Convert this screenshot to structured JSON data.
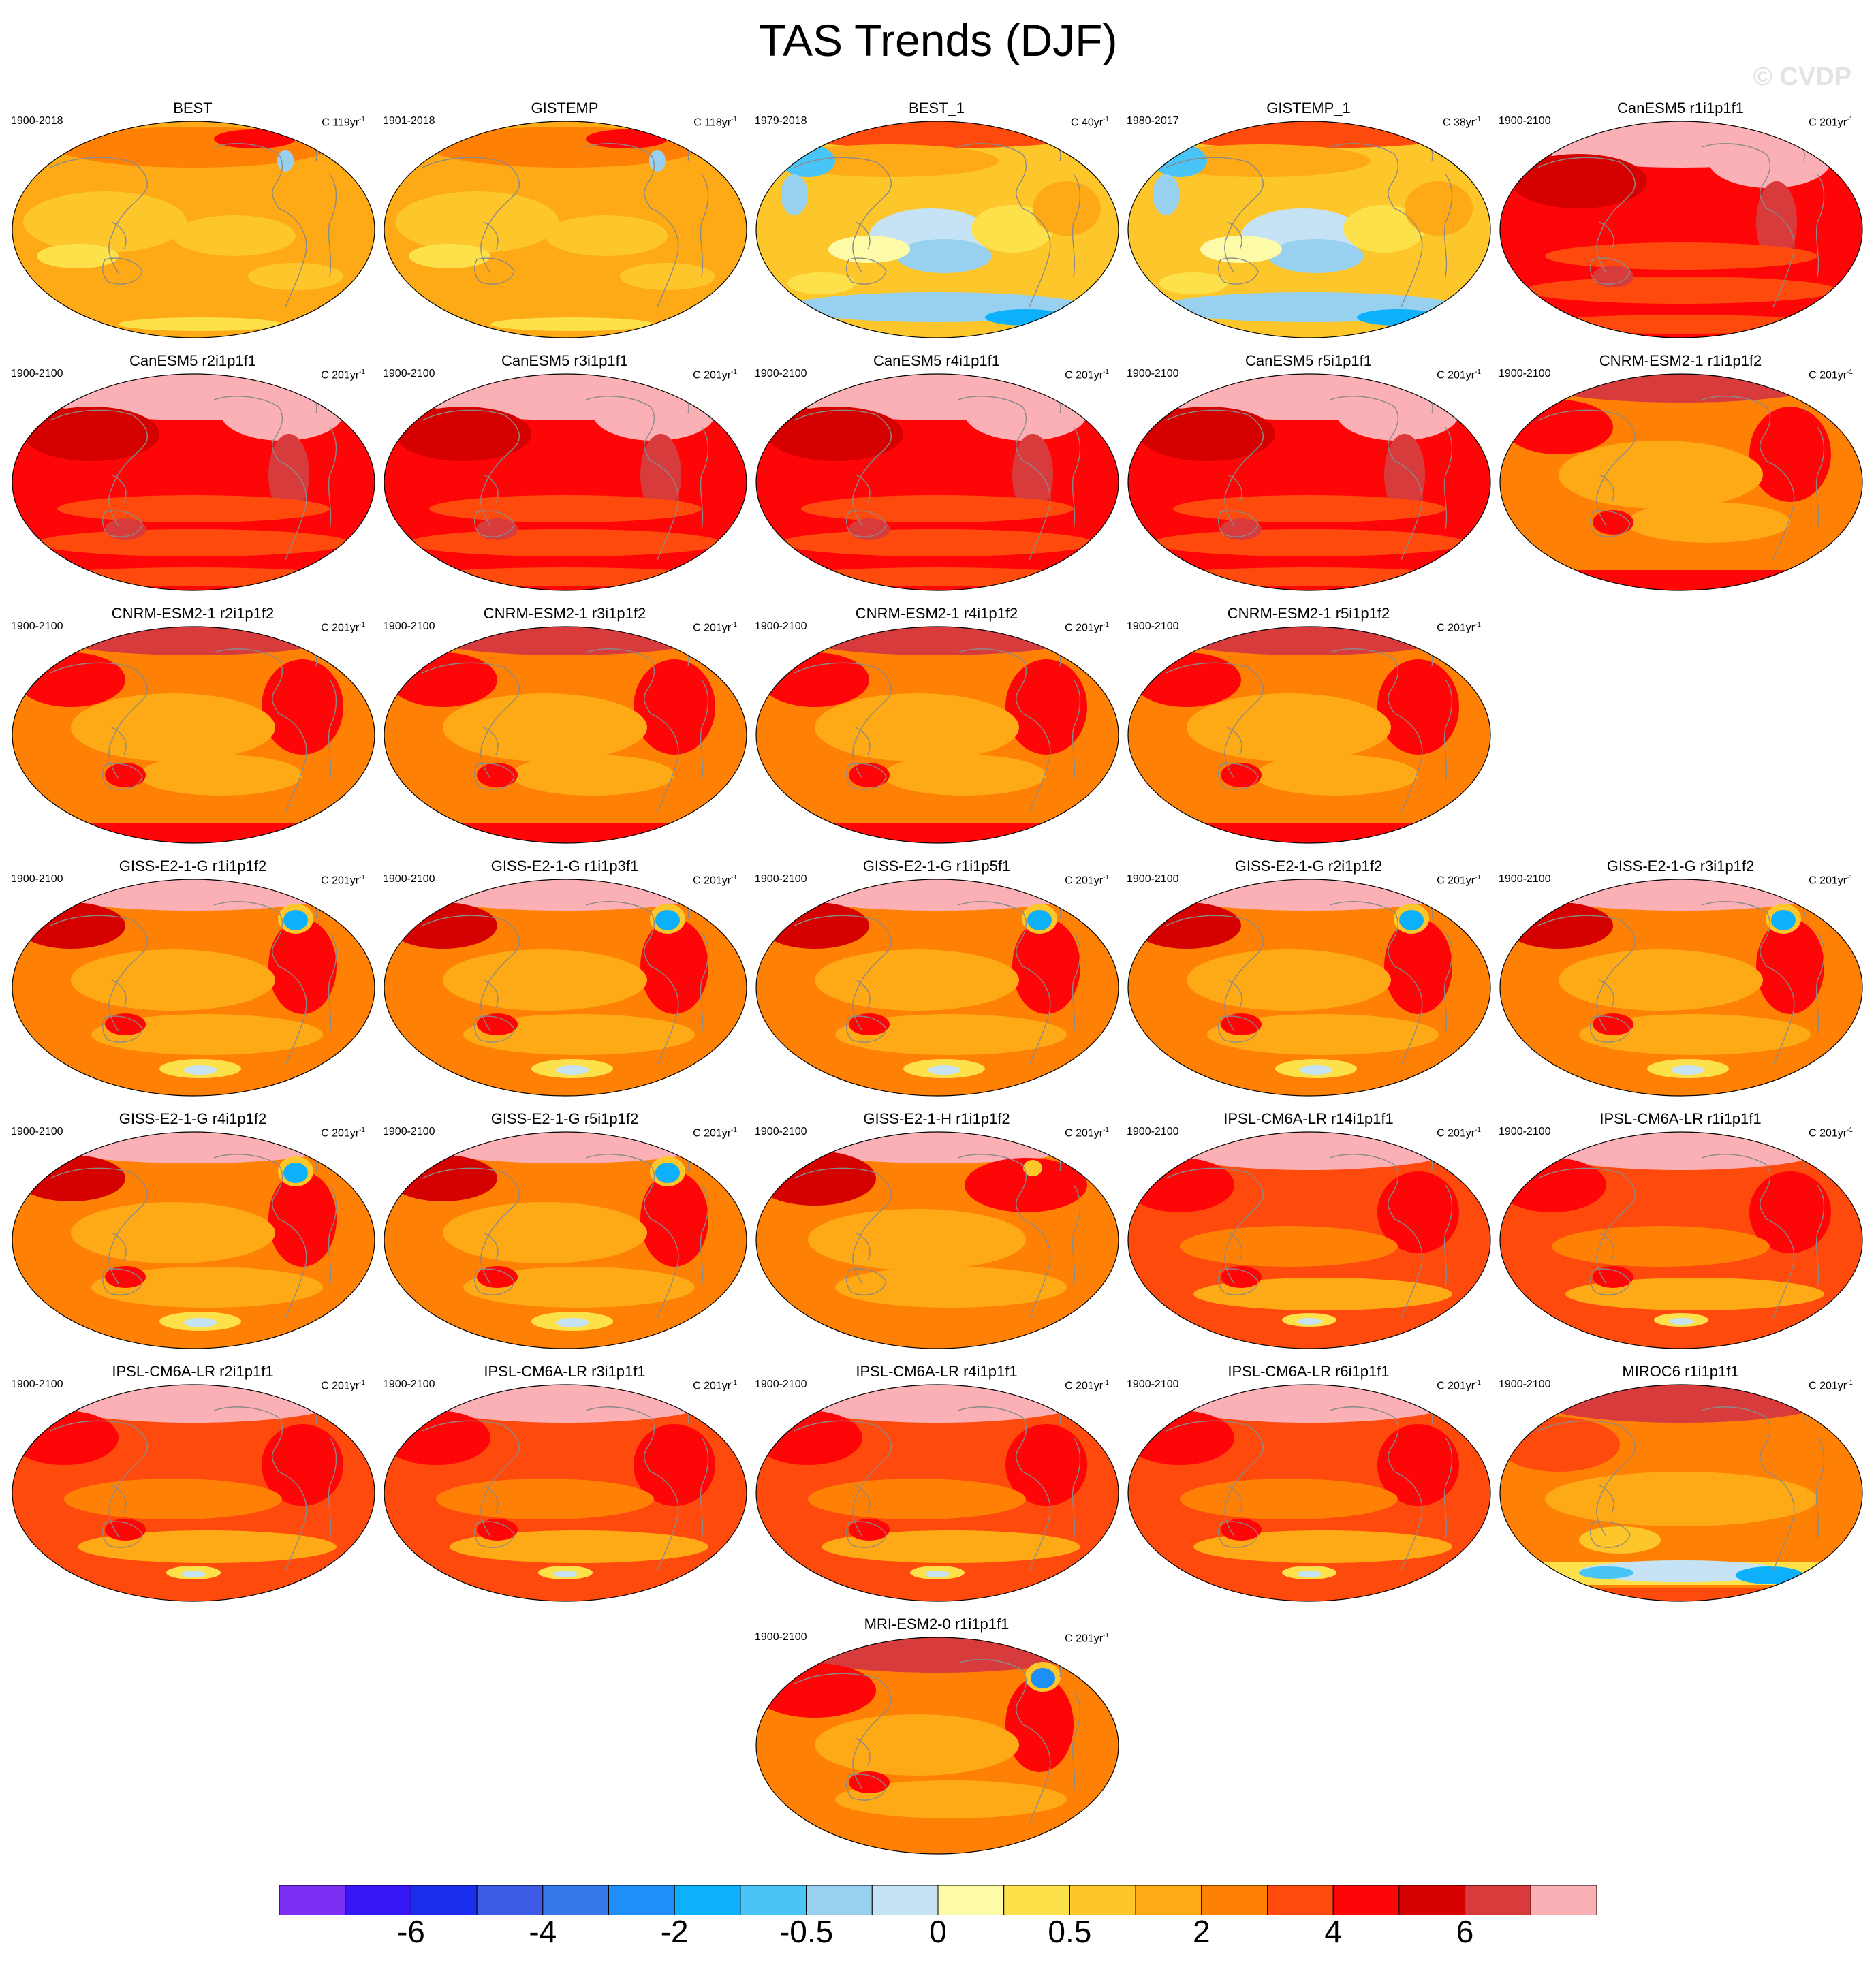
{
  "title": "TAS Trends (DJF)",
  "watermark": "© CVDP",
  "colorbar": {
    "colors": [
      "#7b2ff2",
      "#3517f5",
      "#1b2eee",
      "#3d5be6",
      "#3678ea",
      "#1e8ff6",
      "#0db0fb",
      "#48c4f6",
      "#98d1ef",
      "#c5e3f5",
      "#fdfba8",
      "#fde14a",
      "#fdc62a",
      "#fdaa16",
      "#fe8106",
      "#fe4b0d",
      "#fe0507",
      "#d50000",
      "#d83b3c",
      "#fbb0b5"
    ],
    "tick_labels": [
      "-6",
      "-4",
      "-2",
      "-0.5",
      "0",
      "0.5",
      "2",
      "4",
      "6"
    ]
  },
  "panels": [
    {
      "name": "BEST",
      "period": "1900-2018",
      "unit": "C 119yr",
      "sup": "-1",
      "style": "obs"
    },
    {
      "name": "GISTEMP",
      "period": "1901-2018",
      "unit": "C 118yr",
      "sup": "-1",
      "style": "obs"
    },
    {
      "name": "BEST_1",
      "period": "1979-2018",
      "unit": "C 40yr",
      "sup": "-1",
      "style": "obs_recent"
    },
    {
      "name": "GISTEMP_1",
      "period": "1980-2017",
      "unit": "C 38yr",
      "sup": "-1",
      "style": "obs_recent"
    },
    {
      "name": "CanESM5 r1i1p1f1",
      "period": "1900-2100",
      "unit": "C 201yr",
      "sup": "-1",
      "style": "canesm"
    },
    {
      "name": "CanESM5 r2i1p1f1",
      "period": "1900-2100",
      "unit": "C 201yr",
      "sup": "-1",
      "style": "canesm"
    },
    {
      "name": "CanESM5 r3i1p1f1",
      "period": "1900-2100",
      "unit": "C 201yr",
      "sup": "-1",
      "style": "canesm"
    },
    {
      "name": "CanESM5 r4i1p1f1",
      "period": "1900-2100",
      "unit": "C 201yr",
      "sup": "-1",
      "style": "canesm"
    },
    {
      "name": "CanESM5 r5i1p1f1",
      "period": "1900-2100",
      "unit": "C 201yr",
      "sup": "-1",
      "style": "canesm"
    },
    {
      "name": "CNRM-ESM2-1 r1i1p1f2",
      "period": "1900-2100",
      "unit": "C 201yr",
      "sup": "-1",
      "style": "cnrm"
    },
    {
      "name": "CNRM-ESM2-1 r2i1p1f2",
      "period": "1900-2100",
      "unit": "C 201yr",
      "sup": "-1",
      "style": "cnrm"
    },
    {
      "name": "CNRM-ESM2-1 r3i1p1f2",
      "period": "1900-2100",
      "unit": "C 201yr",
      "sup": "-1",
      "style": "cnrm"
    },
    {
      "name": "CNRM-ESM2-1 r4i1p1f2",
      "period": "1900-2100",
      "unit": "C 201yr",
      "sup": "-1",
      "style": "cnrm"
    },
    {
      "name": "CNRM-ESM2-1 r5i1p1f2",
      "period": "1900-2100",
      "unit": "C 201yr",
      "sup": "-1",
      "style": "cnrm"
    },
    {
      "name": "GISS-E2-1-G r1i1p1f2",
      "period": "1900-2100",
      "unit": "C 201yr",
      "sup": "-1",
      "style": "giss"
    },
    {
      "name": "GISS-E2-1-G r1i1p3f1",
      "period": "1900-2100",
      "unit": "C 201yr",
      "sup": "-1",
      "style": "giss"
    },
    {
      "name": "GISS-E2-1-G r1i1p5f1",
      "period": "1900-2100",
      "unit": "C 201yr",
      "sup": "-1",
      "style": "giss"
    },
    {
      "name": "GISS-E2-1-G r2i1p1f2",
      "period": "1900-2100",
      "unit": "C 201yr",
      "sup": "-1",
      "style": "giss"
    },
    {
      "name": "GISS-E2-1-G r3i1p1f2",
      "period": "1900-2100",
      "unit": "C 201yr",
      "sup": "-1",
      "style": "giss"
    },
    {
      "name": "GISS-E2-1-G r4i1p1f2",
      "period": "1900-2100",
      "unit": "C 201yr",
      "sup": "-1",
      "style": "giss"
    },
    {
      "name": "GISS-E2-1-G r5i1p1f2",
      "period": "1900-2100",
      "unit": "C 201yr",
      "sup": "-1",
      "style": "giss"
    },
    {
      "name": "GISS-E2-1-H r1i1p1f2",
      "period": "1900-2100",
      "unit": "C 201yr",
      "sup": "-1",
      "style": "giss_h"
    },
    {
      "name": "IPSL-CM6A-LR r14i1p1f1",
      "period": "1900-2100",
      "unit": "C 201yr",
      "sup": "-1",
      "style": "ipsl"
    },
    {
      "name": "IPSL-CM6A-LR r1i1p1f1",
      "period": "1900-2100",
      "unit": "C 201yr",
      "sup": "-1",
      "style": "ipsl"
    },
    {
      "name": "IPSL-CM6A-LR r2i1p1f1",
      "period": "1900-2100",
      "unit": "C 201yr",
      "sup": "-1",
      "style": "ipsl"
    },
    {
      "name": "IPSL-CM6A-LR r3i1p1f1",
      "period": "1900-2100",
      "unit": "C 201yr",
      "sup": "-1",
      "style": "ipsl"
    },
    {
      "name": "IPSL-CM6A-LR r4i1p1f1",
      "period": "1900-2100",
      "unit": "C 201yr",
      "sup": "-1",
      "style": "ipsl"
    },
    {
      "name": "IPSL-CM6A-LR r6i1p1f1",
      "period": "1900-2100",
      "unit": "C 201yr",
      "sup": "-1",
      "style": "ipsl"
    },
    {
      "name": "MIROC6 r1i1p1f1",
      "period": "1900-2100",
      "unit": "C 201yr",
      "sup": "-1",
      "style": "miroc"
    },
    {
      "name": "MRI-ESM2-0 r1i1p1f1",
      "period": "1900-2100",
      "unit": "C 201yr",
      "sup": "-1",
      "style": "mri"
    }
  ]
}
